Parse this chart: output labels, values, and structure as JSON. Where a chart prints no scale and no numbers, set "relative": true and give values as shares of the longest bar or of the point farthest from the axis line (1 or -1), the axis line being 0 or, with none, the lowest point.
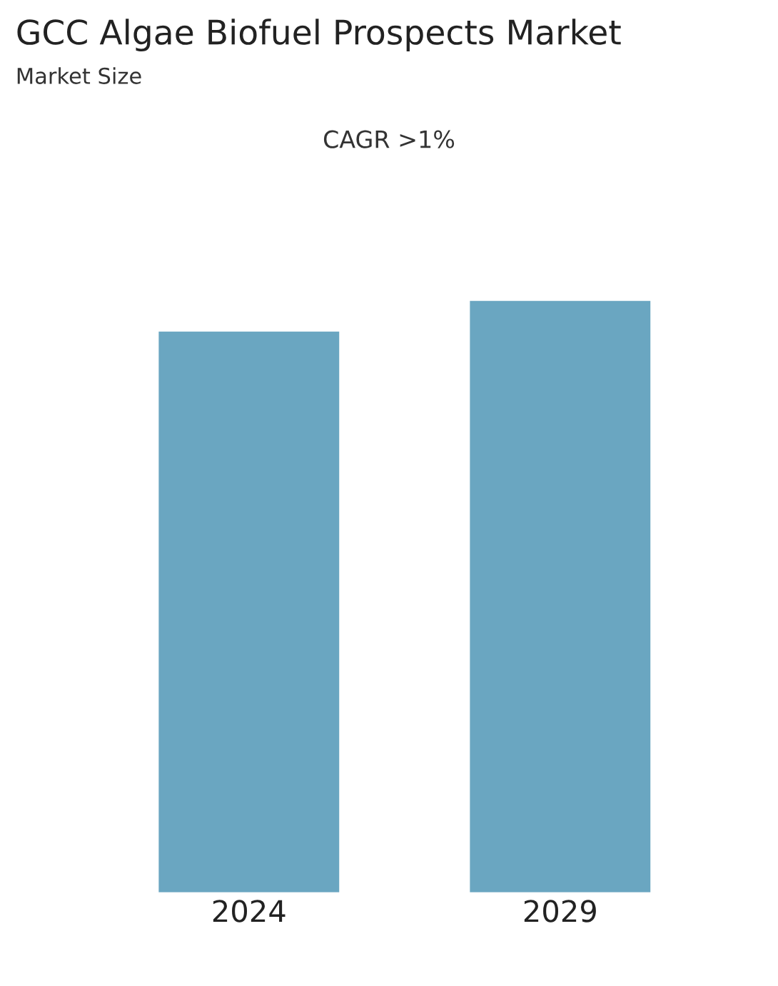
{
  "chart_data": {
    "type": "bar",
    "title": "GCC Algae Biofuel Prospects Market",
    "subtitle": "Market Size",
    "annotations": [
      "CAGR >1%"
    ],
    "categories": [
      "2024",
      "2029"
    ],
    "values": [
      0.948,
      1
    ],
    "color": "#6aa6c1",
    "relative": true,
    "grid": false,
    "legend": false
  }
}
